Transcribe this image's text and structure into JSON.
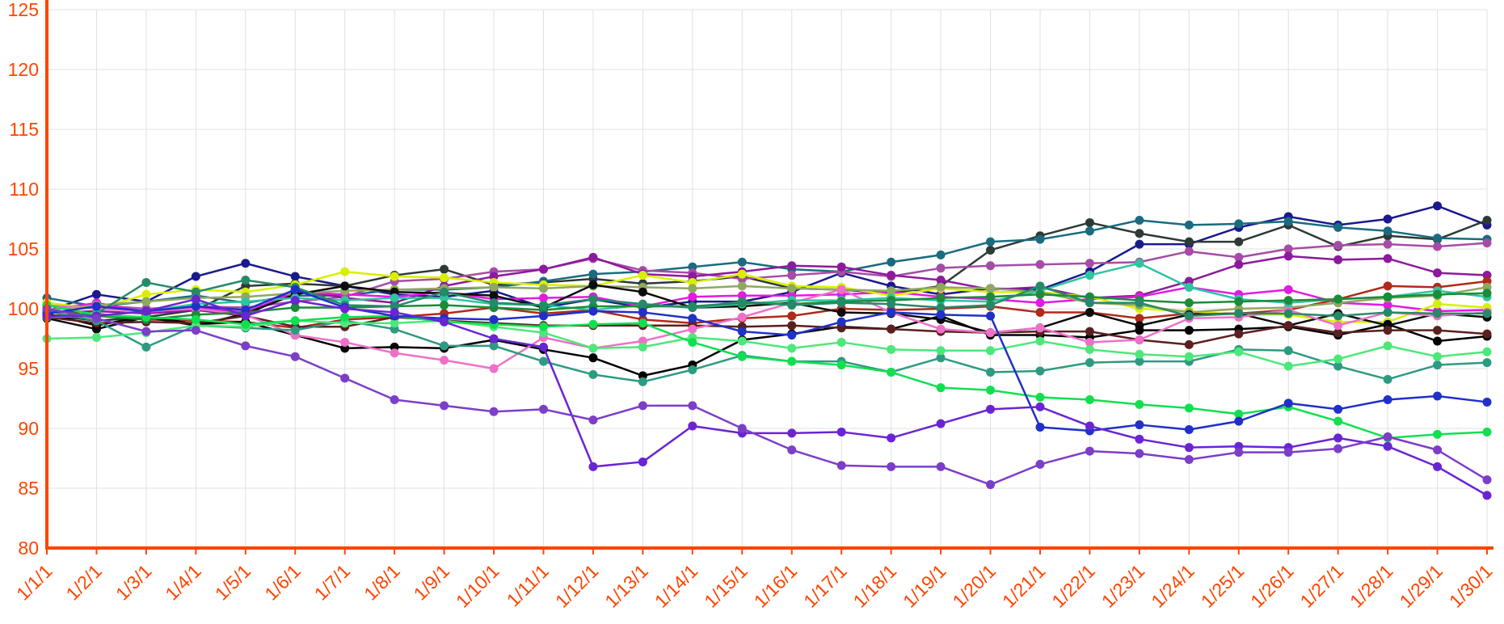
{
  "colors": {
    "axis": "#ff4500",
    "grid": "#e0e0e0",
    "background": "#ffffff"
  },
  "chart_data": {
    "type": "line",
    "title": "",
    "xlabel": "",
    "ylabel": "",
    "ylim": [
      80,
      125
    ],
    "y_ticks": [
      80,
      85,
      90,
      95,
      100,
      105,
      110,
      115,
      120,
      125
    ],
    "grid": true,
    "legend": "none",
    "categories": [
      "1/1/1",
      "1/2/1",
      "1/3/1",
      "1/4/1",
      "1/5/1",
      "1/6/1",
      "1/7/1",
      "1/8/1",
      "1/9/1",
      "1/10/1",
      "1/11/1",
      "1/12/1",
      "1/13/1",
      "1/14/1",
      "1/15/1",
      "1/16/1",
      "1/17/1",
      "1/18/1",
      "1/19/1",
      "1/20/1",
      "1/21/1",
      "1/22/1",
      "1/23/1",
      "1/24/1",
      "1/25/1",
      "1/26/1",
      "1/27/1",
      "1/28/1",
      "1/29/1",
      "1/30/1"
    ],
    "series": [
      {
        "color": "#1a1a8c",
        "values": [
          99.8,
          101.2,
          100.6,
          102.7,
          103.8,
          102.7,
          101.9,
          101.2,
          101.0,
          101.5,
          100.1,
          100.8,
          100.1,
          100.6,
          100.6,
          101.4,
          103.0,
          101.9,
          101.2,
          101.7,
          101.6,
          103.1,
          105.4,
          105.4,
          106.8,
          107.7,
          107.0,
          107.5,
          108.6,
          107.0
        ]
      },
      {
        "color": "#2d3a35",
        "values": [
          99.5,
          99.0,
          99.3,
          99.9,
          101.9,
          102.1,
          101.9,
          102.8,
          103.3,
          102.0,
          102.2,
          102.5,
          102.1,
          102.3,
          102.7,
          101.7,
          101.6,
          101.3,
          101.9,
          104.9,
          106.1,
          107.2,
          106.3,
          105.6,
          105.6,
          107.0,
          105.2,
          106.1,
          105.8,
          107.4
        ]
      },
      {
        "color": "#1a6b80",
        "values": [
          100.9,
          100.2,
          100.6,
          101.1,
          100.5,
          101.1,
          101.1,
          101.6,
          101.6,
          101.8,
          102.3,
          102.9,
          103.1,
          103.5,
          103.9,
          103.3,
          103.1,
          103.9,
          104.5,
          105.6,
          105.8,
          106.5,
          107.4,
          107.0,
          107.1,
          107.3,
          106.8,
          106.5,
          105.9,
          105.8
        ]
      },
      {
        "color": "#a64ca6",
        "values": [
          100.2,
          100.3,
          100.0,
          100.2,
          100.1,
          100.6,
          101.0,
          102.3,
          102.5,
          103.1,
          103.3,
          104.2,
          103.2,
          103.0,
          102.5,
          102.8,
          103.1,
          102.7,
          103.4,
          103.6,
          103.7,
          103.8,
          103.9,
          104.8,
          104.3,
          105.0,
          105.3,
          105.4,
          105.2,
          105.5
        ]
      },
      {
        "color": "#8c1a9c",
        "values": [
          99.7,
          99.8,
          99.6,
          99.9,
          99.4,
          101.6,
          100.9,
          100.5,
          101.9,
          102.7,
          103.3,
          104.3,
          102.9,
          102.7,
          103.1,
          103.6,
          103.5,
          102.8,
          102.4,
          101.6,
          101.8,
          100.9,
          101.1,
          102.3,
          103.7,
          104.4,
          104.1,
          104.2,
          103.0,
          102.8
        ]
      },
      {
        "color": "#e21ae2",
        "values": [
          99.8,
          100.5,
          99.7,
          100.1,
          99.7,
          101.4,
          101.2,
          101.0,
          101.4,
          100.8,
          100.9,
          101.0,
          100.2,
          101.0,
          101.1,
          101.1,
          101.2,
          101.4,
          101.0,
          100.8,
          100.5,
          100.8,
          101.0,
          101.8,
          101.2,
          101.6,
          100.5,
          100.3,
          99.8,
          99.9
        ]
      },
      {
        "color": "#b02a1a",
        "values": [
          99.4,
          99.6,
          99.1,
          99.0,
          98.9,
          98.4,
          99.1,
          99.3,
          99.6,
          100.1,
          99.6,
          99.9,
          99.1,
          98.8,
          99.2,
          99.4,
          100.0,
          99.9,
          100.0,
          100.2,
          99.7,
          99.7,
          99.2,
          99.6,
          99.6,
          99.9,
          100.8,
          101.9,
          101.8,
          102.3
        ]
      },
      {
        "color": "#d8f000",
        "values": [
          100.5,
          100.0,
          101.2,
          101.6,
          101.4,
          102.0,
          103.1,
          102.7,
          102.6,
          102.2,
          102.0,
          101.9,
          102.8,
          102.2,
          102.9,
          101.9,
          101.8,
          101.1,
          101.7,
          101.4,
          101.4,
          101.0,
          100.0,
          99.8,
          99.5,
          99.5,
          98.9,
          98.9,
          100.4,
          100.1
        ]
      },
      {
        "color": "#8fa860",
        "values": [
          99.9,
          100.3,
          100.6,
          100.9,
          101.0,
          101.3,
          101.5,
          101.6,
          101.7,
          101.8,
          101.7,
          101.9,
          101.8,
          101.7,
          101.9,
          101.7,
          101.6,
          101.5,
          101.8,
          101.7,
          101.4,
          100.5,
          100.3,
          99.7,
          100.0,
          100.1,
          100.5,
          100.9,
          101.1,
          101.8
        ]
      },
      {
        "color": "#0d0d0d",
        "values": [
          99.2,
          98.3,
          99.3,
          98.6,
          99.6,
          101.2,
          101.9,
          101.4,
          101.3,
          101.1,
          100.1,
          102.0,
          101.4,
          100.1,
          100.2,
          100.5,
          99.7,
          99.6,
          99.1,
          98.0,
          98.4,
          99.7,
          98.6,
          99.5,
          99.6,
          98.6,
          99.6,
          98.6,
          99.6,
          99.3
        ]
      },
      {
        "color": "#000000",
        "values": [
          99.6,
          98.6,
          99.4,
          98.7,
          98.9,
          97.8,
          96.7,
          96.8,
          96.7,
          97.4,
          96.6,
          95.9,
          94.4,
          95.3,
          97.4,
          97.9,
          98.5,
          98.3,
          99.4,
          97.8,
          97.8,
          97.6,
          98.2,
          98.2,
          98.3,
          98.5,
          97.8,
          98.7,
          97.3,
          97.7
        ]
      },
      {
        "color": "#5a2020",
        "values": [
          99.3,
          98.8,
          98.9,
          98.8,
          99.4,
          98.5,
          98.5,
          99.3,
          99.0,
          98.8,
          98.6,
          98.6,
          98.6,
          98.6,
          98.5,
          98.6,
          98.4,
          98.3,
          98.1,
          98.0,
          98.1,
          98.1,
          97.4,
          97.0,
          97.9,
          98.6,
          98.0,
          98.2,
          98.2,
          97.9
        ]
      },
      {
        "color": "#ee70c8",
        "values": [
          100.3,
          100.0,
          99.8,
          100.0,
          99.5,
          97.8,
          97.2,
          96.3,
          95.7,
          95.0,
          97.6,
          96.7,
          97.3,
          98.3,
          99.3,
          100.5,
          101.6,
          99.7,
          98.3,
          98.0,
          98.4,
          97.2,
          97.4,
          99.2,
          99.3,
          99.9,
          98.6,
          99.7,
          99.4,
          99.7
        ]
      },
      {
        "color": "#2ec4a0",
        "values": [
          99.3,
          99.4,
          99.8,
          100.4,
          100.6,
          100.9,
          100.7,
          100.9,
          100.9,
          100.4,
          100.3,
          99.9,
          100.3,
          100.1,
          100.4,
          100.7,
          100.7,
          100.9,
          100.7,
          100.6,
          101.5,
          102.8,
          103.8,
          101.8,
          100.8,
          100.5,
          100.8,
          101.0,
          101.5,
          101.0
        ]
      },
      {
        "color": "#1a8c3a",
        "values": [
          99.9,
          99.4,
          99.1,
          99.5,
          99.7,
          100.1,
          100.1,
          100.2,
          100.3,
          100.1,
          99.9,
          100.2,
          100.2,
          100.2,
          100.5,
          100.4,
          100.6,
          100.7,
          100.9,
          101.0,
          101.2,
          101.0,
          100.7,
          100.5,
          100.6,
          100.7,
          100.8,
          101.0,
          101.2,
          101.3
        ]
      },
      {
        "color": "#268a68",
        "values": [
          99.3,
          99.6,
          102.2,
          101.4,
          102.4,
          101.8,
          100.3,
          100.2,
          101.4,
          100.5,
          100.3,
          100.8,
          100.4,
          100.1,
          100.6,
          100.3,
          100.5,
          100.4,
          100.1,
          100.3,
          101.9,
          100.5,
          100.5,
          99.4,
          99.6,
          99.6,
          99.4,
          99.7,
          99.6,
          99.6
        ]
      },
      {
        "color": "#2e9a82",
        "values": [
          99.8,
          99.0,
          96.8,
          98.6,
          98.4,
          98.2,
          99.0,
          98.3,
          96.9,
          96.9,
          95.6,
          94.5,
          93.9,
          94.9,
          96.1,
          95.6,
          95.6,
          94.7,
          95.9,
          94.7,
          94.8,
          95.5,
          95.6,
          95.6,
          96.6,
          96.5,
          95.2,
          94.1,
          95.3,
          95.5
        ]
      },
      {
        "color": "#4ce87a",
        "values": [
          97.5,
          97.6,
          98.0,
          98.6,
          98.5,
          99.0,
          98.8,
          98.8,
          99.0,
          98.5,
          98.0,
          96.7,
          96.8,
          97.6,
          97.3,
          96.7,
          97.2,
          96.6,
          96.5,
          96.5,
          97.3,
          96.6,
          96.2,
          96.0,
          96.4,
          95.2,
          95.8,
          96.9,
          96.0,
          96.4
        ]
      },
      {
        "color": "#10e050",
        "values": [
          100.3,
          99.5,
          99.3,
          99.1,
          98.7,
          99.0,
          99.3,
          99.4,
          98.9,
          98.7,
          98.5,
          98.7,
          98.8,
          97.2,
          96.0,
          95.6,
          95.3,
          94.7,
          93.4,
          93.2,
          92.6,
          92.4,
          92.0,
          91.7,
          91.2,
          91.8,
          90.6,
          89.2,
          89.5,
          89.7
        ]
      },
      {
        "color": "#2030c8",
        "values": [
          99.6,
          100.2,
          99.8,
          100.2,
          99.9,
          101.6,
          100.1,
          99.4,
          99.2,
          99.1,
          99.4,
          99.8,
          99.7,
          99.2,
          98.1,
          97.8,
          98.9,
          99.7,
          99.5,
          99.4,
          90.1,
          89.8,
          90.3,
          89.9,
          90.6,
          92.1,
          91.6,
          92.4,
          92.7,
          92.2
        ]
      },
      {
        "color": "#6a24d4",
        "values": [
          99.4,
          99.4,
          99.8,
          100.8,
          99.4,
          100.7,
          100.0,
          99.7,
          98.9,
          97.5,
          96.8,
          86.8,
          87.2,
          90.2,
          89.6,
          89.6,
          89.7,
          89.2,
          90.4,
          91.6,
          91.8,
          90.2,
          89.1,
          88.4,
          88.5,
          88.4,
          89.2,
          88.5,
          86.8,
          84.4
        ]
      },
      {
        "color": "#7c3ec8",
        "values": [
          100.0,
          99.2,
          98.1,
          98.2,
          96.9,
          96.0,
          94.2,
          92.4,
          91.9,
          91.4,
          91.6,
          90.7,
          91.9,
          91.9,
          90.0,
          88.2,
          86.9,
          86.8,
          86.8,
          85.3,
          87.0,
          88.1,
          87.9,
          87.4,
          88.0,
          88.0,
          88.3,
          89.3,
          88.2,
          85.7
        ]
      }
    ]
  }
}
